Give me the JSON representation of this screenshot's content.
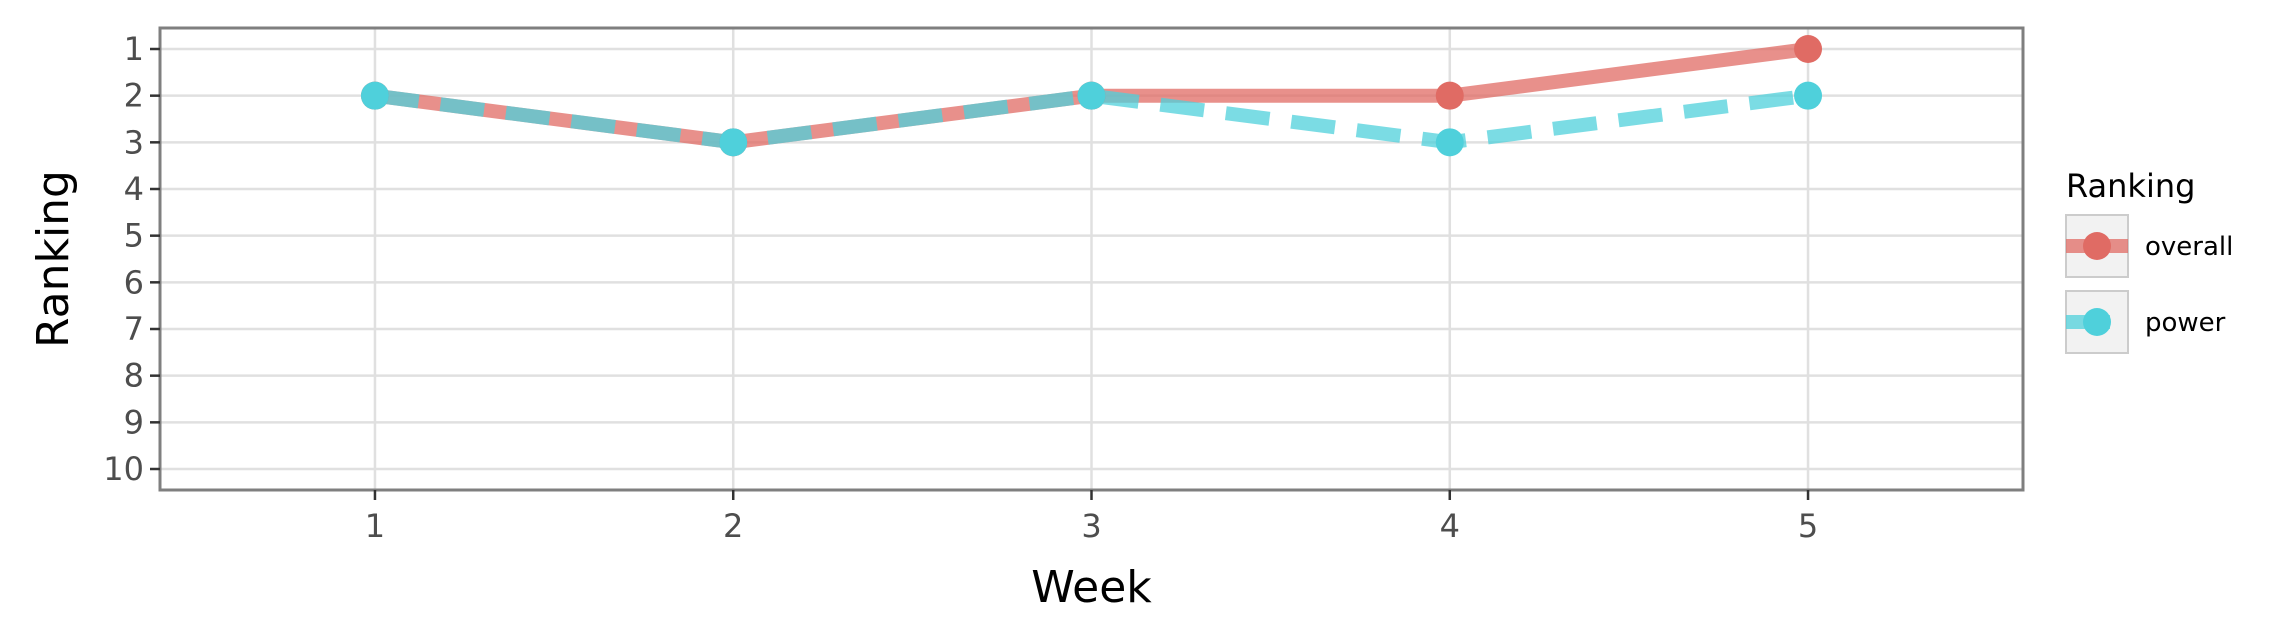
{
  "chart_data": {
    "type": "line",
    "title": "",
    "xlabel": "Week",
    "ylabel": "Ranking",
    "x": [
      1,
      2,
      3,
      4,
      5
    ],
    "x_tick_labels": [
      "1",
      "2",
      "3",
      "4",
      "5"
    ],
    "y_tick_labels": [
      "1",
      "2",
      "3",
      "4",
      "5",
      "6",
      "7",
      "8",
      "9",
      "10"
    ],
    "y_ticks": [
      1,
      2,
      3,
      4,
      5,
      6,
      7,
      8,
      9,
      10
    ],
    "xlim": [
      0.4,
      5.6
    ],
    "ylim": [
      10.45,
      0.55
    ],
    "y_axis_reversed": true,
    "grid": true,
    "legend": {
      "title": "Ranking",
      "position": "right"
    },
    "series": [
      {
        "name": "overall",
        "values": [
          2,
          3,
          2,
          2,
          1
        ],
        "color": "#e06b64",
        "line_style": "solid"
      },
      {
        "name": "power",
        "values": [
          2,
          3,
          2,
          3,
          2
        ],
        "color": "#4fd0db",
        "line_style": "dashed"
      }
    ],
    "colors": {
      "panel_border": "#7f7f7f",
      "grid": "#e0e0e0",
      "tick_text": "#4d4d4d",
      "legend_key_bg": "#f2f2f2",
      "legend_key_border": "#cccccc"
    }
  }
}
